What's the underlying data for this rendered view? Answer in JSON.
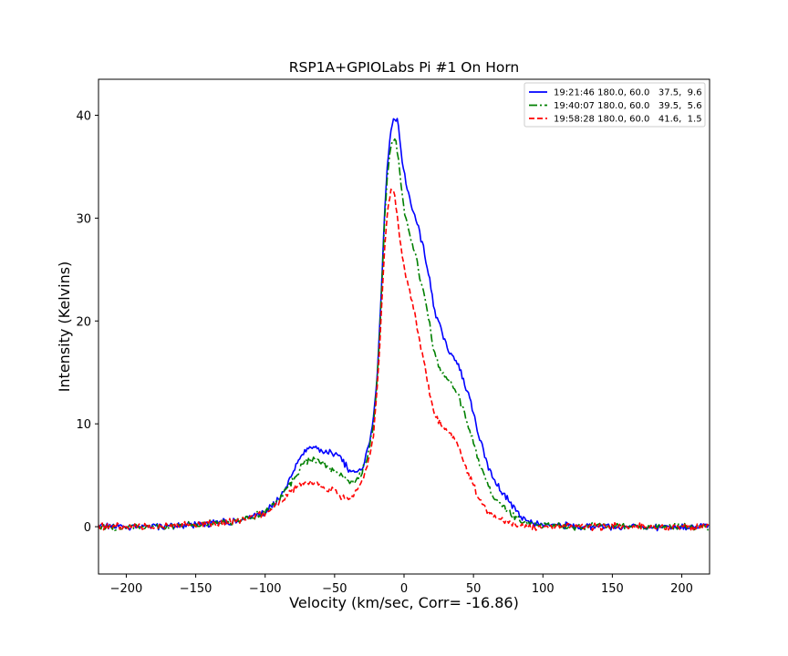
{
  "chart_data": {
    "type": "line",
    "title": "RSP1A+GPIOLabs Pi #1 On Horn",
    "xlabel": "Velocity (km/sec,  Corr=   -16.86)",
    "ylabel": "Intensity (Kelvins)",
    "xlim": [
      -220,
      220
    ],
    "ylim": [
      -4.6,
      43.5
    ],
    "xticks": [
      -200,
      -150,
      -100,
      -50,
      0,
      50,
      100,
      150,
      200
    ],
    "xtick_labels": [
      "−200",
      "−150",
      "−100",
      "−50",
      "0",
      "50",
      "100",
      "150",
      "200"
    ],
    "yticks": [
      0,
      10,
      20,
      30,
      40
    ],
    "ytick_labels": [
      "0",
      "10",
      "20",
      "30",
      "40"
    ],
    "grid": false,
    "legend_position": "top-right",
    "series": [
      {
        "name": "19:21:46 180.0, 60.0   37.5,  9.6",
        "color": "#0000ff",
        "dash": "solid",
        "x": [
          -220,
          -200,
          -180,
          -160,
          -140,
          -120,
          -110,
          -100,
          -95,
          -90,
          -85,
          -80,
          -75,
          -72,
          -68,
          -65,
          -62,
          -58,
          -55,
          -52,
          -48,
          -45,
          -42,
          -40,
          -37,
          -34,
          -31,
          -28,
          -25,
          -22,
          -20,
          -18,
          -16,
          -14,
          -12,
          -10,
          -8,
          -6,
          -5,
          -4,
          -3,
          -2,
          0,
          2,
          5,
          8,
          10,
          12,
          15,
          18,
          20,
          22,
          25,
          28,
          30,
          32,
          35,
          38,
          40,
          42,
          45,
          48,
          50,
          52,
          55,
          58,
          60,
          62,
          65,
          70,
          75,
          80,
          85,
          90,
          95,
          100,
          110,
          120,
          140,
          160,
          180,
          200,
          220
        ],
        "y": [
          0,
          0,
          0,
          0.1,
          0.3,
          0.6,
          0.9,
          1.4,
          2.0,
          2.8,
          3.9,
          5.3,
          6.5,
          7.3,
          7.7,
          7.8,
          7.6,
          7.3,
          7.3,
          7.2,
          7.0,
          6.6,
          6.0,
          5.5,
          5.3,
          5.2,
          5.6,
          6.5,
          8.0,
          10.5,
          13.5,
          18.0,
          24.0,
          30.5,
          35.0,
          38.0,
          39.4,
          39.6,
          39.4,
          38.8,
          37.8,
          36.2,
          34.5,
          33.0,
          31.5,
          30.0,
          29.2,
          28.2,
          26.5,
          24.3,
          22.5,
          21.0,
          19.8,
          18.4,
          17.8,
          17.3,
          16.6,
          16.1,
          15.4,
          14.5,
          13.3,
          12.1,
          11.0,
          9.8,
          8.3,
          7.0,
          6.1,
          5.3,
          4.5,
          3.5,
          2.6,
          1.7,
          1.0,
          0.6,
          0.3,
          0.2,
          0.1,
          0.1,
          0,
          0,
          0,
          0,
          0
        ]
      },
      {
        "name": "19:40:07 180.0, 60.0   39.5,  5.6",
        "color": "#008000",
        "dash": "dashdot",
        "x": [
          -220,
          -200,
          -180,
          -160,
          -140,
          -120,
          -110,
          -100,
          -95,
          -90,
          -85,
          -80,
          -75,
          -72,
          -68,
          -65,
          -62,
          -58,
          -55,
          -52,
          -48,
          -45,
          -42,
          -40,
          -37,
          -34,
          -31,
          -28,
          -25,
          -22,
          -20,
          -18,
          -16,
          -14,
          -12,
          -10,
          -8,
          -6,
          -5,
          -4,
          -3,
          -2,
          0,
          2,
          5,
          8,
          10,
          12,
          15,
          18,
          20,
          22,
          25,
          28,
          30,
          32,
          35,
          38,
          40,
          42,
          45,
          48,
          50,
          52,
          55,
          58,
          60,
          62,
          65,
          70,
          75,
          80,
          85,
          90,
          95,
          100,
          110,
          120,
          140,
          160,
          180,
          200,
          220
        ],
        "y": [
          0,
          0,
          0,
          0.1,
          0.3,
          0.6,
          0.9,
          1.4,
          2.0,
          2.7,
          3.6,
          4.6,
          5.6,
          6.2,
          6.5,
          6.5,
          6.3,
          6.0,
          5.8,
          5.6,
          5.3,
          5.0,
          4.6,
          4.3,
          4.3,
          4.6,
          5.1,
          6.0,
          7.5,
          10.0,
          13.0,
          17.5,
          23.5,
          30.0,
          34.0,
          36.8,
          37.7,
          37.4,
          36.6,
          35.6,
          34.4,
          33.0,
          31.0,
          29.5,
          28.0,
          26.5,
          25.3,
          24.0,
          22.3,
          20.0,
          18.3,
          17.0,
          15.8,
          14.9,
          14.5,
          14.2,
          13.7,
          13.1,
          12.4,
          11.5,
          10.3,
          9.1,
          8.1,
          7.1,
          5.8,
          4.8,
          4.1,
          3.5,
          2.8,
          2.1,
          1.5,
          1.0,
          0.6,
          0.3,
          0.2,
          0.1,
          0.1,
          0,
          0,
          0,
          0,
          0,
          0
        ]
      },
      {
        "name": "19:58:28 180.0, 60.0   41.6,  1.5",
        "color": "#ff0000",
        "dash": "dashed",
        "x": [
          -220,
          -200,
          -180,
          -160,
          -140,
          -120,
          -110,
          -100,
          -95,
          -90,
          -85,
          -80,
          -75,
          -72,
          -68,
          -65,
          -62,
          -58,
          -55,
          -52,
          -48,
          -45,
          -42,
          -40,
          -37,
          -34,
          -31,
          -28,
          -25,
          -22,
          -20,
          -18,
          -16,
          -14,
          -12,
          -10,
          -8,
          -6,
          -5,
          -4,
          -3,
          -2,
          0,
          2,
          5,
          8,
          10,
          12,
          15,
          18,
          20,
          22,
          25,
          28,
          30,
          32,
          35,
          38,
          40,
          42,
          45,
          48,
          50,
          52,
          55,
          58,
          60,
          62,
          65,
          70,
          75,
          80,
          85,
          90,
          95,
          100,
          110,
          120,
          140,
          160,
          180,
          200,
          220
        ],
        "y": [
          0,
          0,
          0,
          0.1,
          0.3,
          0.6,
          0.9,
          1.4,
          1.9,
          2.4,
          3.0,
          3.6,
          4.1,
          4.3,
          4.3,
          4.2,
          4.1,
          3.9,
          3.7,
          3.6,
          3.3,
          3.0,
          2.8,
          2.8,
          3.0,
          3.5,
          4.3,
          5.3,
          6.8,
          9.0,
          12.0,
          16.0,
          21.5,
          27.0,
          30.8,
          32.5,
          32.8,
          31.5,
          30.4,
          29.2,
          28.0,
          27.0,
          25.3,
          24.0,
          22.5,
          20.5,
          19.0,
          17.7,
          15.5,
          13.5,
          12.0,
          11.0,
          10.3,
          9.8,
          9.5,
          9.3,
          8.8,
          8.2,
          7.5,
          6.6,
          5.6,
          4.7,
          4.0,
          3.3,
          2.6,
          2.0,
          1.6,
          1.3,
          1.0,
          0.6,
          0.4,
          0.2,
          0.1,
          0.1,
          0,
          0,
          0,
          0,
          0,
          0,
          0,
          0,
          0
        ]
      }
    ]
  }
}
